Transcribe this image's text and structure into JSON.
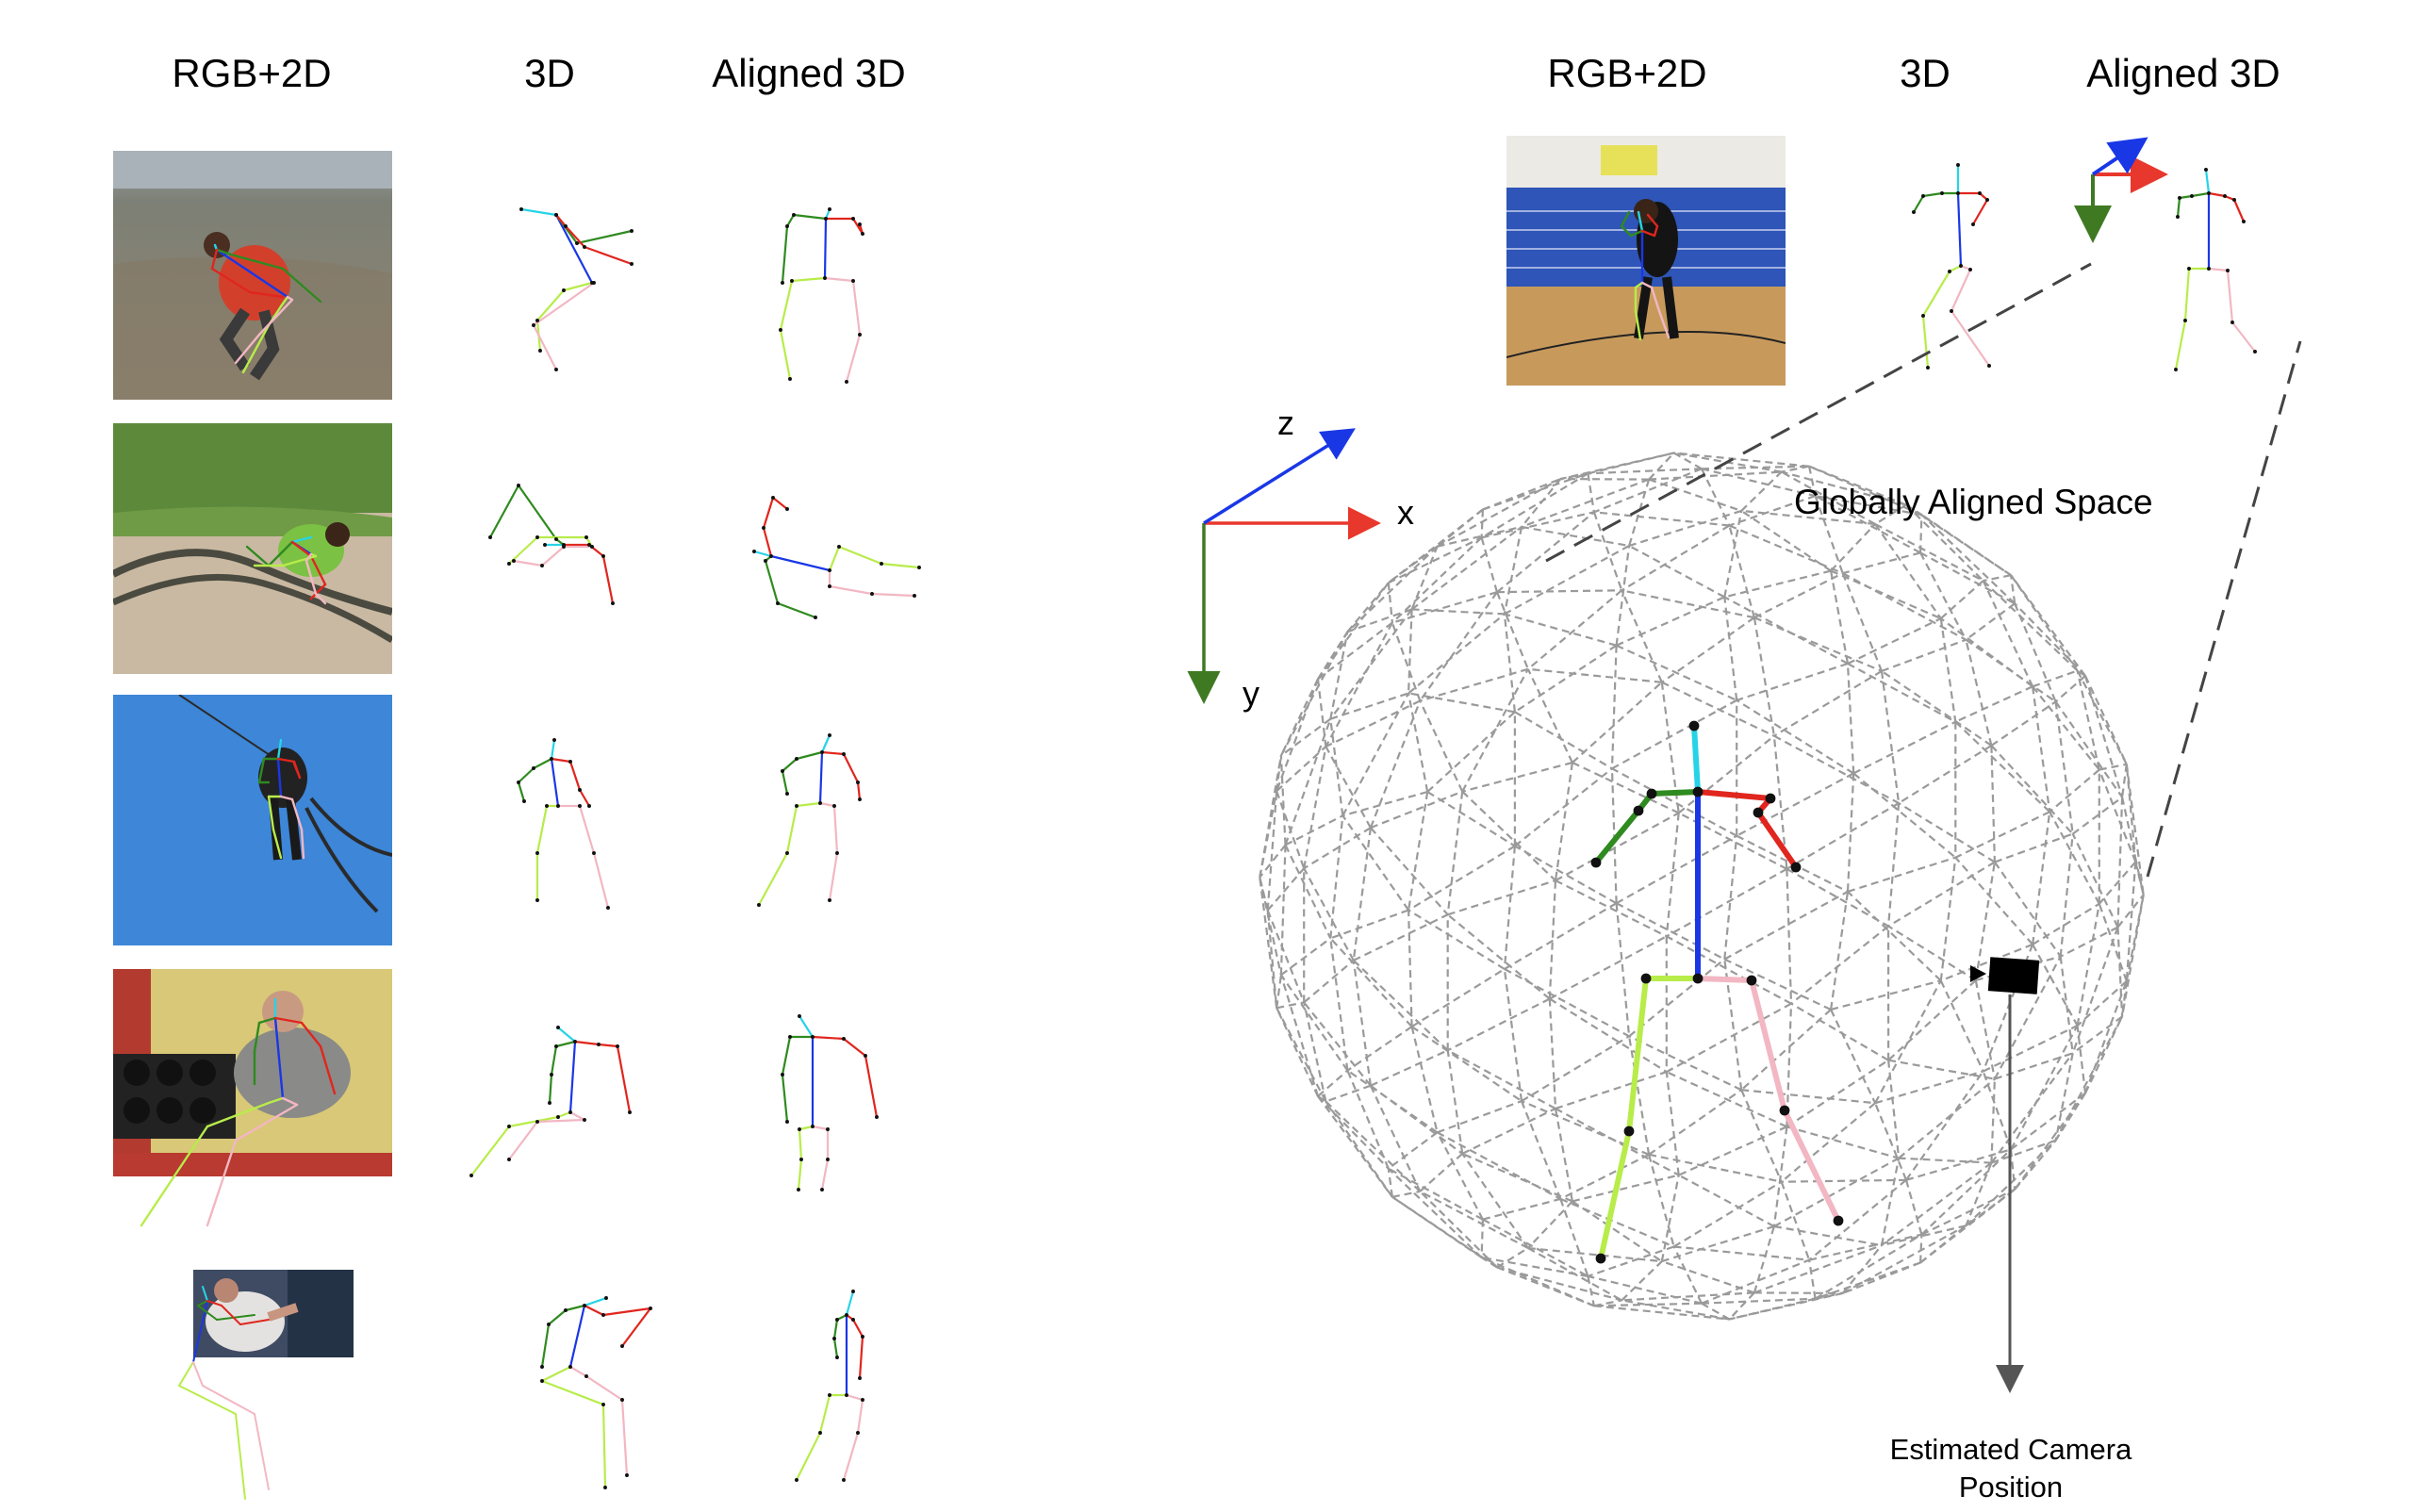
{
  "left_panel": {
    "headers": {
      "rgb2d": "RGB+2D",
      "pose3d": "3D",
      "aligned3d": "Aligned 3D"
    }
  },
  "right_panel": {
    "headers": {
      "rgb2d": "RGB+2D",
      "pose3d": "3D",
      "aligned3d": "Aligned 3D"
    },
    "axes": {
      "x": "x",
      "y": "y",
      "z": "z"
    },
    "sphere_title": "Globally Aligned Space",
    "camera_caption_line1": "Estimated Camera",
    "camera_caption_line2": "Position"
  },
  "colors": {
    "x_axis": "#e8372c",
    "y_axis": "#3f7a22",
    "z_axis": "#1a37e6",
    "spine": "#1a37e6",
    "head": "#27d3e6",
    "left_arm": "#2f8a1f",
    "right_arm": "#e0261e",
    "left_leg": "#b8ec4a",
    "right_leg": "#f2b7c3",
    "sphere_wire": "#9a9a9a"
  },
  "photos": [
    {
      "name": "beach-jump-photo",
      "scene": "beach"
    },
    {
      "name": "sand-rope-photo",
      "scene": "grass-sand"
    },
    {
      "name": "sky-jump-photo",
      "scene": "sky"
    },
    {
      "name": "gym-dips-photo",
      "scene": "gym"
    },
    {
      "name": "arm-wrestling-photo",
      "scene": "arm-wrestle"
    },
    {
      "name": "basketball-photo",
      "scene": "court"
    }
  ]
}
